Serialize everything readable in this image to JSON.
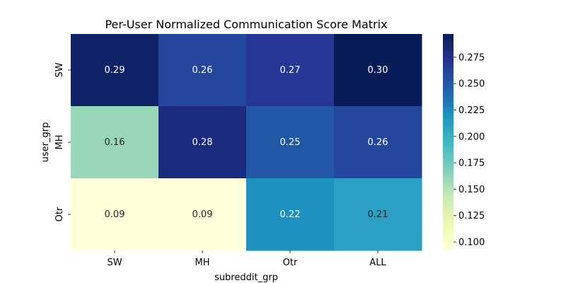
{
  "chart_data": {
    "type": "heatmap",
    "title": "Per-User Normalized Communication Score Matrix",
    "xlabel": "subreddit_grp",
    "ylabel": "user_grp",
    "x_categories": [
      "SW",
      "MH",
      "Otr",
      "ALL"
    ],
    "y_categories": [
      "SW",
      "MH",
      "Otr"
    ],
    "values": [
      [
        0.29,
        0.26,
        0.27,
        0.3
      ],
      [
        0.16,
        0.28,
        0.25,
        0.26
      ],
      [
        0.09,
        0.09,
        0.22,
        0.21
      ]
    ],
    "cell_labels": [
      [
        "0.29",
        "0.26",
        "0.27",
        "0.30"
      ],
      [
        "0.16",
        "0.28",
        "0.25",
        "0.26"
      ],
      [
        "0.09",
        "0.09",
        "0.22",
        "0.21"
      ]
    ],
    "colormap": "YlGnBu",
    "colorbar": {
      "range": [
        0.092,
        0.297
      ],
      "ticks": [
        0.1,
        0.125,
        0.15,
        0.175,
        0.2,
        0.225,
        0.25,
        0.275
      ],
      "tick_labels": [
        "0.100",
        "0.125",
        "0.150",
        "0.175",
        "0.200",
        "0.225",
        "0.250",
        "0.275"
      ]
    },
    "grid": false,
    "legend": "colorbar-right"
  }
}
